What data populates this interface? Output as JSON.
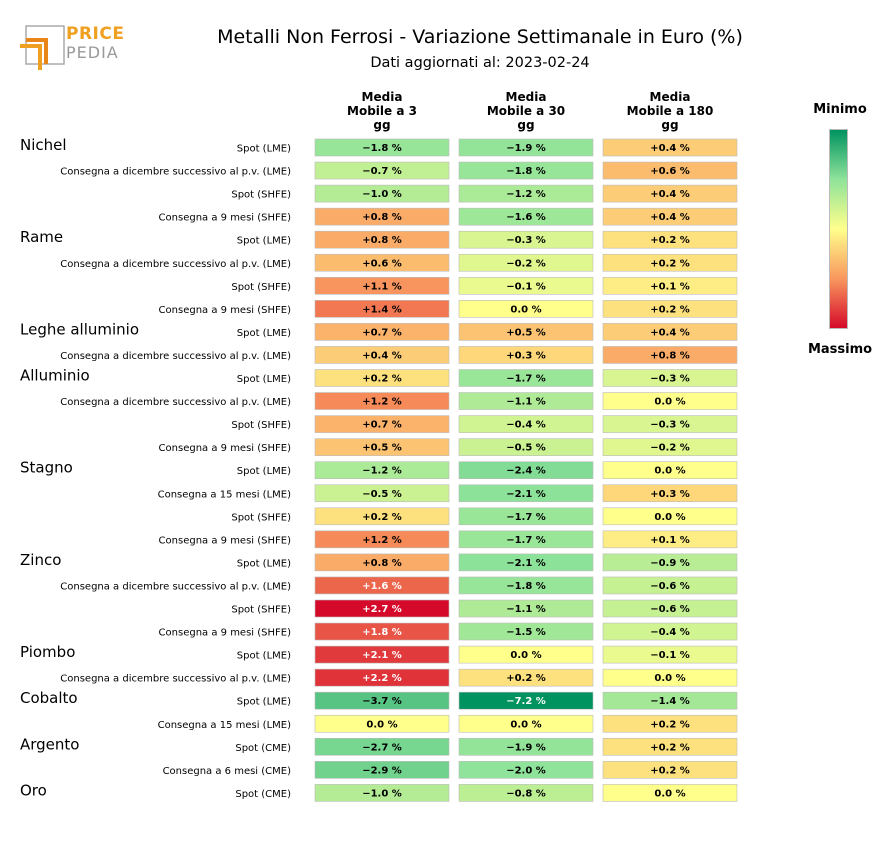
{
  "logo": {
    "line1": "PRICE",
    "line2": "PEDIA"
  },
  "title": "Metalli Non Ferrosi - Variazione Settimanale in Euro (%)",
  "subtitle": "Dati aggiornati al: 2023-02-24",
  "legend": {
    "min_label": "Minimo",
    "max_label": "Massimo",
    "colors": [
      "#009360",
      "#8fe39a",
      "#ffff8c",
      "#f9975e",
      "#d50a2a"
    ]
  },
  "chart_data": {
    "type": "heatmap",
    "title": "Metalli Non Ferrosi - Variazione Settimanale in Euro (%)",
    "columns": [
      "Media\nMobile a 3\ngg",
      "Media\nMobile a 30\ngg",
      "Media\nMobile a 180\ngg"
    ],
    "groups": [
      {
        "name": "Nichel",
        "rows": [
          {
            "label": "Spot (LME)",
            "values": [
              -1.8,
              -1.9,
              0.4
            ]
          },
          {
            "label": "Consegna a dicembre successivo al p.v. (LME)",
            "values": [
              -0.7,
              -1.8,
              0.6
            ]
          },
          {
            "label": "Spot (SHFE)",
            "values": [
              -1.0,
              -1.2,
              0.4
            ]
          },
          {
            "label": "Consegna a 9 mesi (SHFE)",
            "values": [
              0.8,
              -1.6,
              0.4
            ]
          }
        ]
      },
      {
        "name": "Rame",
        "rows": [
          {
            "label": "Spot (LME)",
            "values": [
              0.8,
              -0.3,
              0.2
            ]
          },
          {
            "label": "Consegna a dicembre successivo al p.v. (LME)",
            "values": [
              0.6,
              -0.2,
              0.2
            ]
          },
          {
            "label": "Spot (SHFE)",
            "values": [
              1.1,
              -0.1,
              0.1
            ]
          },
          {
            "label": "Consegna a 9 mesi (SHFE)",
            "values": [
              1.4,
              0.0,
              0.2
            ]
          }
        ]
      },
      {
        "name": "Leghe alluminio",
        "rows": [
          {
            "label": "Spot (LME)",
            "values": [
              0.7,
              0.5,
              0.4
            ]
          },
          {
            "label": "Consegna a dicembre successivo al p.v. (LME)",
            "values": [
              0.4,
              0.3,
              0.8
            ]
          }
        ]
      },
      {
        "name": "Alluminio",
        "rows": [
          {
            "label": "Spot (LME)",
            "values": [
              0.2,
              -1.7,
              -0.3
            ]
          },
          {
            "label": "Consegna a dicembre successivo al p.v. (LME)",
            "values": [
              1.2,
              -1.1,
              0.0
            ]
          },
          {
            "label": "Spot (SHFE)",
            "values": [
              0.7,
              -0.4,
              -0.3
            ]
          },
          {
            "label": "Consegna a 9 mesi (SHFE)",
            "values": [
              0.5,
              -0.5,
              -0.2
            ]
          }
        ]
      },
      {
        "name": "Stagno",
        "rows": [
          {
            "label": "Spot (LME)",
            "values": [
              -1.2,
              -2.4,
              0.0
            ]
          },
          {
            "label": "Consegna a 15 mesi (LME)",
            "values": [
              -0.5,
              -2.1,
              0.3
            ]
          },
          {
            "label": "Spot (SHFE)",
            "values": [
              0.2,
              -1.7,
              0.0
            ]
          },
          {
            "label": "Consegna a 9 mesi (SHFE)",
            "values": [
              1.2,
              -1.7,
              0.1
            ]
          }
        ]
      },
      {
        "name": "Zinco",
        "rows": [
          {
            "label": "Spot (LME)",
            "values": [
              0.8,
              -2.1,
              -0.9
            ]
          },
          {
            "label": "Consegna a dicembre successivo al p.v. (LME)",
            "values": [
              1.6,
              -1.8,
              -0.6
            ]
          },
          {
            "label": "Spot (SHFE)",
            "values": [
              2.7,
              -1.1,
              -0.6
            ]
          },
          {
            "label": "Consegna a 9 mesi (SHFE)",
            "values": [
              1.8,
              -1.5,
              -0.4
            ]
          }
        ]
      },
      {
        "name": "Piombo",
        "rows": [
          {
            "label": "Spot (LME)",
            "values": [
              2.1,
              0.0,
              -0.1
            ]
          },
          {
            "label": "Consegna a dicembre successivo al p.v. (LME)",
            "values": [
              2.2,
              0.2,
              0.0
            ]
          }
        ]
      },
      {
        "name": "Cobalto",
        "rows": [
          {
            "label": "Spot (LME)",
            "values": [
              -3.7,
              -7.2,
              -1.4
            ]
          },
          {
            "label": "Consegna a 15 mesi (LME)",
            "values": [
              0.0,
              0.0,
              0.2
            ]
          }
        ]
      },
      {
        "name": "Argento",
        "rows": [
          {
            "label": "Spot (CME)",
            "values": [
              -2.7,
              -1.9,
              0.2
            ]
          },
          {
            "label": "Consegna a 6 mesi (CME)",
            "values": [
              -2.9,
              -2.0,
              0.2
            ]
          }
        ]
      },
      {
        "name": "Oro",
        "rows": [
          {
            "label": "Spot (CME)",
            "values": [
              -1.0,
              -0.8,
              0.0
            ]
          }
        ]
      }
    ]
  }
}
